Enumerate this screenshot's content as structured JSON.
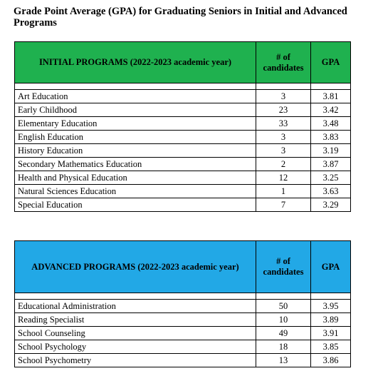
{
  "title": "Grade Point Average (GPA) for Graduating Seniors in Initial and Advanced Programs",
  "colors": {
    "initial_header": "#1fb14f",
    "advanced_header": "#22a8e6"
  },
  "initial": {
    "header": "INITIAL PROGRAMS (2022-2023 academic year)",
    "col_candidates": "# of candidates",
    "col_gpa": "GPA",
    "rows": [
      {
        "name": "Art Education",
        "candidates": "3",
        "gpa": "3.81"
      },
      {
        "name": "Early Childhood",
        "candidates": "23",
        "gpa": "3.42"
      },
      {
        "name": "Elementary Education",
        "candidates": "33",
        "gpa": "3.48"
      },
      {
        "name": "English Education",
        "candidates": "3",
        "gpa": "3.83"
      },
      {
        "name": "History Education",
        "candidates": "3",
        "gpa": "3.19"
      },
      {
        "name": "Secondary Mathematics Education",
        "candidates": "2",
        "gpa": "3.87"
      },
      {
        "name": "Health and Physical Education",
        "candidates": "12",
        "gpa": "3.25"
      },
      {
        "name": "Natural Sciences Education",
        "candidates": "1",
        "gpa": "3.63"
      },
      {
        "name": "Special Education",
        "candidates": "7",
        "gpa": "3.29"
      }
    ]
  },
  "advanced": {
    "header": "ADVANCED PROGRAMS (2022-2023 academic year)",
    "col_candidates": "# of candidates",
    "col_gpa": "GPA",
    "rows": [
      {
        "name": "Educational Administration",
        "candidates": "50",
        "gpa": "3.95"
      },
      {
        "name": "Reading Specialist",
        "candidates": "10",
        "gpa": "3.89"
      },
      {
        "name": "School Counseling",
        "candidates": "49",
        "gpa": "3.91"
      },
      {
        "name": "School Psychology",
        "candidates": "18",
        "gpa": "3.85"
      },
      {
        "name": "School Psychometry",
        "candidates": "13",
        "gpa": "3.86"
      }
    ]
  }
}
